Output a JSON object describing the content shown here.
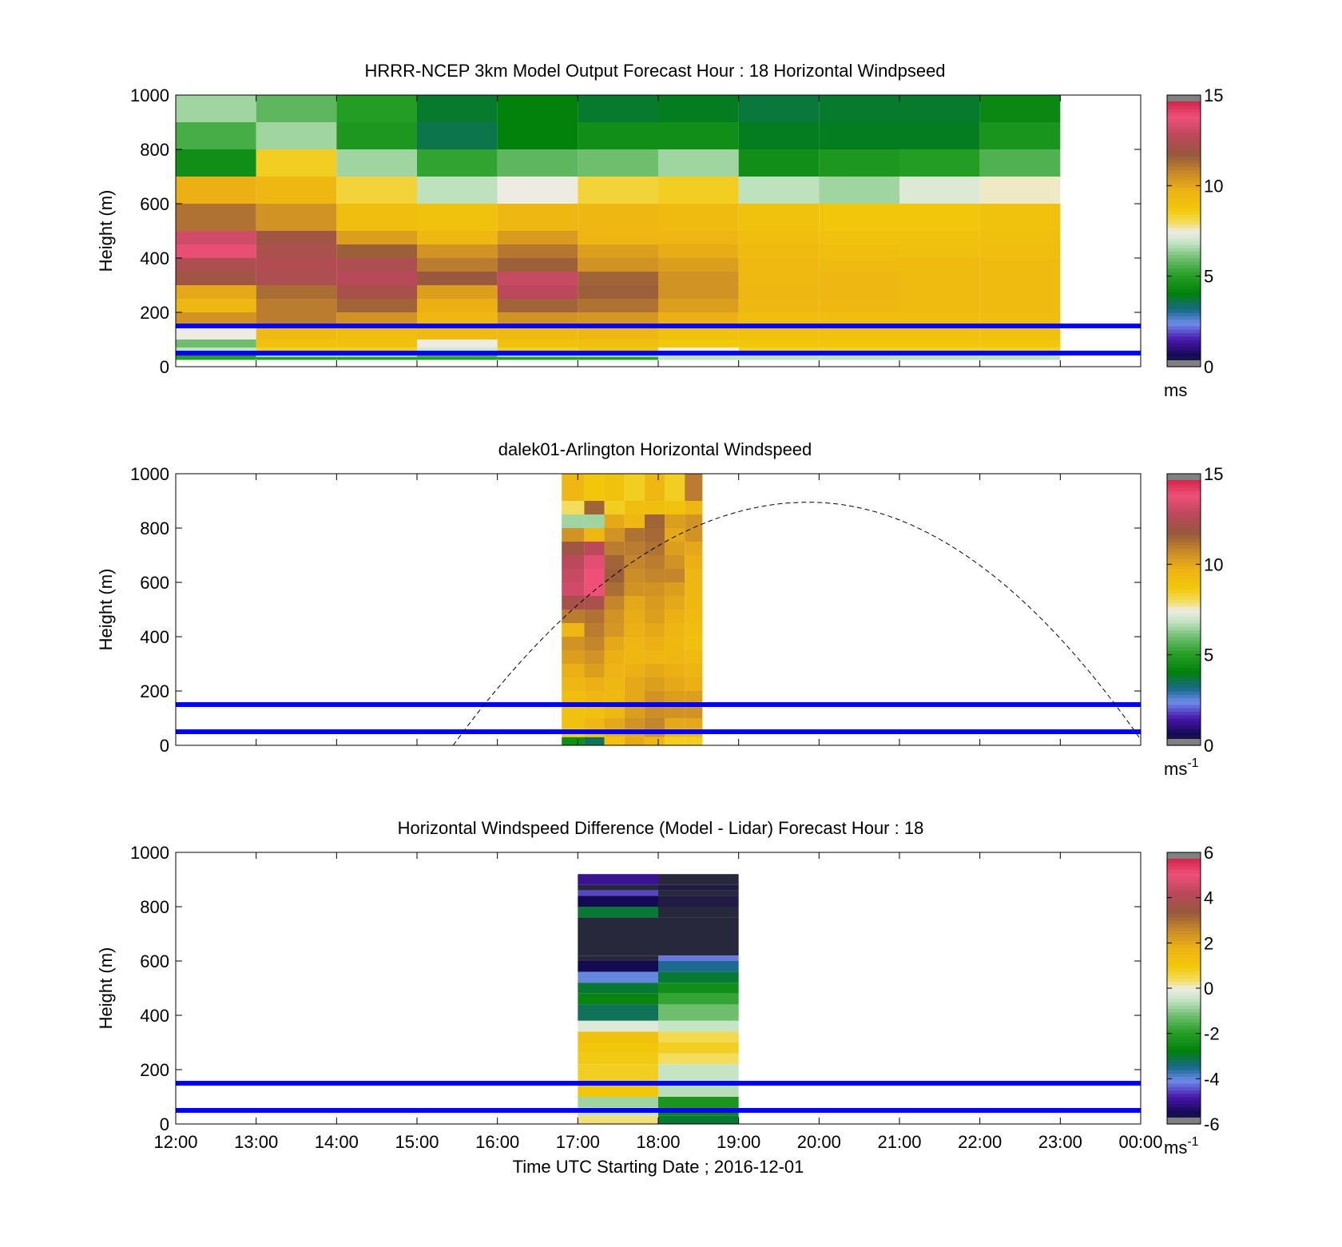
{
  "figure": {
    "xlabel": "Time UTC  Starting Date ; 2016-12-01",
    "x_ticks": [
      "12:00",
      "13:00",
      "14:00",
      "15:00",
      "16:00",
      "17:00",
      "18:00",
      "19:00",
      "20:00",
      "21:00",
      "22:00",
      "23:00",
      "00:00"
    ],
    "ylabel": "Height (m)",
    "y_ticks": [
      "0",
      "200",
      "400",
      "600",
      "800",
      "1000"
    ],
    "line_color": "#0000ff",
    "reference_lines_m": [
      50,
      150
    ]
  },
  "chart_data": [
    {
      "type": "heatmap",
      "title": "HRRR-NCEP 3km Model Output   Forecast Hour : 18 Horizontal Windpseed",
      "xlabel": "",
      "ylabel": "Height (m)",
      "ylim": [
        0,
        1000
      ],
      "xlim_hours": [
        12,
        24
      ],
      "colorbar": {
        "ticks": [
          "0",
          "5",
          "10",
          "15"
        ],
        "vmin": 0,
        "vmax": 15,
        "unit": "ms",
        "unit_sup": ""
      },
      "horizontal_lines_m": [
        50,
        150
      ],
      "columns_start_hour": [
        12,
        13,
        14,
        15,
        16,
        17,
        18,
        19,
        20,
        21,
        22
      ],
      "column_width_hours": 1,
      "row_tops_m": [
        1000,
        900,
        800,
        700,
        600,
        500,
        450,
        400,
        350,
        300,
        250,
        200,
        150,
        100,
        70,
        50,
        35
      ],
      "values": [
        [
          6.5,
          5.5,
          4.5,
          9.8,
          11.2,
          13.2,
          13.7,
          12.4,
          12.0,
          10.0,
          9.5,
          10.5,
          7.5,
          6.0,
          6.8,
          5.0,
          5.0
        ],
        [
          5.8,
          6.5,
          8.5,
          9.5,
          10.5,
          12.0,
          12.3,
          12.5,
          12.4,
          11.3,
          11.0,
          11.0,
          9.3,
          9.0,
          8.5,
          6.5,
          5.0
        ],
        [
          5.0,
          4.8,
          6.5,
          8.3,
          9.2,
          10.2,
          11.6,
          12.4,
          12.7,
          12.2,
          11.5,
          10.5,
          9.2,
          9.0,
          8.5,
          6.5,
          5.0
        ],
        [
          3.8,
          3.6,
          5.2,
          6.8,
          9.0,
          9.5,
          10.5,
          11.0,
          11.8,
          10.2,
          9.8,
          9.5,
          9.3,
          7.5,
          7.0,
          5.5,
          5.0
        ],
        [
          4.1,
          4.1,
          5.8,
          7.5,
          9.5,
          10.3,
          11.1,
          11.6,
          13.0,
          12.8,
          11.5,
          10.5,
          9.3,
          9.0,
          8.5,
          6.5,
          5.0
        ],
        [
          3.8,
          4.5,
          6.0,
          8.3,
          9.5,
          9.6,
          10.2,
          10.5,
          11.5,
          11.6,
          11.2,
          10.4,
          9.5,
          9.1,
          9.0,
          6.5,
          5.0
        ],
        [
          3.9,
          4.5,
          6.5,
          8.5,
          9.3,
          9.6,
          9.9,
          10.2,
          10.5,
          10.5,
          10.2,
          9.8,
          9.0,
          8.7,
          7.5,
          6.8,
          6.8
        ],
        [
          3.7,
          3.9,
          4.5,
          6.8,
          9.0,
          9.2,
          9.3,
          9.4,
          9.4,
          9.5,
          9.4,
          9.2,
          9.0,
          8.8,
          8.5,
          6.8,
          6.8
        ],
        [
          3.8,
          3.9,
          4.8,
          6.5,
          8.8,
          9.0,
          9.2,
          9.3,
          9.5,
          9.5,
          9.4,
          9.2,
          9.0,
          8.8,
          8.5,
          6.8,
          6.8
        ],
        [
          3.8,
          3.9,
          5.0,
          7.2,
          8.8,
          9.0,
          9.1,
          9.3,
          9.3,
          9.3,
          9.3,
          9.2,
          9.0,
          8.8,
          8.5,
          6.8,
          6.8
        ],
        [
          4.3,
          4.7,
          5.6,
          7.6,
          9.0,
          9.1,
          9.2,
          9.3,
          9.3,
          9.3,
          9.3,
          9.2,
          9.0,
          8.8,
          8.5,
          6.8,
          6.8
        ]
      ]
    },
    {
      "type": "heatmap",
      "title": "dalek01-Arlington  Horizontal Windspeed",
      "xlabel": "",
      "ylabel": "Height (m)",
      "ylim": [
        0,
        1000
      ],
      "xlim_hours": [
        12,
        24
      ],
      "colorbar": {
        "ticks": [
          "0",
          "5",
          "10",
          "15"
        ],
        "vmin": 0,
        "vmax": 15,
        "unit": "ms",
        "unit_sup": "-1"
      },
      "horizontal_lines_m": [
        50,
        150
      ],
      "columns_start_hour": [
        16.8,
        17.08,
        17.33,
        17.58,
        17.83,
        18.08,
        18.33
      ],
      "column_end_hour": 18.55,
      "row_tops_m": [
        1000,
        900,
        850,
        800,
        750,
        700,
        650,
        600,
        550,
        500,
        450,
        400,
        350,
        300,
        250,
        200,
        150,
        100,
        60,
        30
      ],
      "values": [
        [
          9.5,
          8.0,
          6.5,
          10.5,
          12.0,
          12.8,
          13.0,
          13.2,
          12.2,
          11.0,
          9.5,
          10.5,
          10.2,
          9.8,
          9.5,
          9.2,
          9.0,
          9.0,
          8.5,
          4.5
        ],
        [
          8.8,
          11.5,
          6.5,
          9.5,
          12.8,
          13.6,
          13.8,
          13.8,
          12.3,
          11.2,
          11.0,
          10.8,
          10.5,
          10.2,
          9.8,
          9.5,
          9.0,
          9.5,
          9.0,
          3.5
        ],
        [
          9.0,
          8.5,
          10.0,
          10.5,
          11.0,
          11.5,
          11.6,
          11.3,
          10.8,
          10.5,
          10.4,
          10.0,
          9.8,
          9.7,
          9.5,
          9.4,
          9.5,
          10.0,
          9.8,
          9.0
        ],
        [
          8.5,
          9.2,
          9.5,
          11.2,
          11.0,
          10.8,
          10.6,
          10.5,
          10.0,
          9.9,
          9.8,
          9.6,
          9.5,
          9.8,
          10.0,
          10.0,
          10.2,
          10.5,
          10.0,
          10.0
        ],
        [
          9.5,
          9.2,
          11.5,
          11.4,
          11.2,
          11.0,
          10.8,
          10.5,
          10.3,
          10.2,
          10.0,
          9.8,
          9.6,
          10.0,
          10.2,
          10.5,
          10.6,
          10.8,
          10.5,
          9.5
        ],
        [
          8.5,
          9.0,
          10.2,
          10.0,
          10.2,
          10.5,
          10.8,
          10.2,
          10.0,
          9.8,
          9.6,
          9.4,
          9.5,
          9.8,
          10.0,
          10.2,
          10.5,
          10.0,
          9.5,
          8.5
        ],
        [
          11.0,
          9.5,
          10.5,
          10.5,
          10.0,
          9.8,
          9.5,
          9.5,
          9.4,
          9.3,
          9.2,
          9.1,
          9.3,
          9.6,
          9.8,
          10.2,
          10.5,
          10.0,
          9.5,
          8.5
        ]
      ]
    },
    {
      "type": "heatmap",
      "title": "Horizontal Windspeed Difference (Model - Lidar) Forecast Hour : 18",
      "xlabel": "Time UTC  Starting Date ; 2016-12-01",
      "ylabel": "Height (m)",
      "ylim": [
        0,
        1000
      ],
      "xlim_hours": [
        12,
        24
      ],
      "colorbar": {
        "ticks": [
          "-6",
          "-4",
          "-2",
          "0",
          "2",
          "4",
          "6"
        ],
        "vmin": -6,
        "vmax": 6,
        "unit": "ms",
        "unit_sup": "-1"
      },
      "horizontal_lines_m": [
        50,
        150
      ],
      "columns_start_hour": [
        17,
        18
      ],
      "column_width_hours": 1,
      "row_tops_m": [
        920,
        880,
        860,
        840,
        800,
        760,
        620,
        600,
        560,
        520,
        480,
        440,
        380,
        340,
        300,
        260,
        220,
        160,
        100,
        60,
        30
      ],
      "values": [
        [
          -5.0,
          -6.5,
          -4.5,
          -5.5,
          -3.0,
          -6.5,
          -6.5,
          -5.5,
          -4.0,
          -3.0,
          -2.6,
          -3.2,
          -0.2,
          1.2,
          1.0,
          0.9,
          0.8,
          1.0,
          -0.8,
          -0.5,
          0.3
        ],
        [
          -6.5,
          -5.8,
          -6.2,
          -5.8,
          -6.0,
          -6.0,
          -4.2,
          -3.5,
          -3.0,
          -2.4,
          -1.8,
          -1.2,
          -0.5,
          0.5,
          0.8,
          0.4,
          -0.5,
          -0.6,
          -2.2,
          -2.6,
          -3.0
        ]
      ]
    }
  ],
  "panel2_overlay": {
    "peak_height_m": 895,
    "peak_hour": 19.87,
    "zero_hour_left": 15.45,
    "zero_hour_right": 24.05,
    "style": "dashed-curve"
  }
}
